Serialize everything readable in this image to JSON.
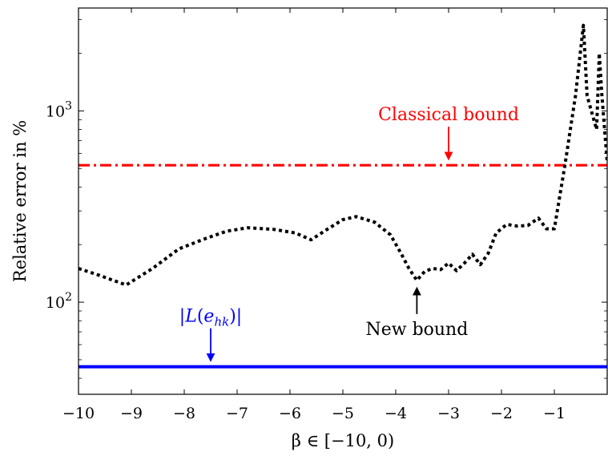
{
  "chart_data": {
    "type": "line",
    "xlabel": "β ∈ [−10, 0)",
    "ylabel": "Relative error in %",
    "xlim": [
      -10,
      0
    ],
    "ylim": [
      33,
      3450
    ],
    "y_scale": "log",
    "grid": false,
    "x_ticks": [
      {
        "value": -10,
        "label": "−10"
      },
      {
        "value": -9,
        "label": "−9"
      },
      {
        "value": -8,
        "label": "−8"
      },
      {
        "value": -7,
        "label": "−7"
      },
      {
        "value": -6,
        "label": "−6"
      },
      {
        "value": -5,
        "label": "−5"
      },
      {
        "value": -4,
        "label": "−4"
      },
      {
        "value": -3,
        "label": "−3"
      },
      {
        "value": -2,
        "label": "−2"
      },
      {
        "value": -1,
        "label": "−1"
      }
    ],
    "y_ticks": [
      {
        "value": 100,
        "base": "10",
        "exp": "2"
      },
      {
        "value": 1000,
        "base": "10",
        "exp": "3"
      }
    ],
    "y_minor_ticks": [
      40,
      50,
      60,
      70,
      80,
      90,
      200,
      300,
      400,
      500,
      600,
      700,
      800,
      900,
      2000,
      3000
    ],
    "series": [
      {
        "name": "Classical bound",
        "style": "dash-dot",
        "color": "#ff0000",
        "x": [
          -10,
          0
        ],
        "y": [
          520,
          520
        ]
      },
      {
        "name": "New bound",
        "style": "dotted",
        "color": "#000000",
        "x": [
          -10,
          -9.6,
          -9.1,
          -8.6,
          -8.1,
          -7.6,
          -7.2,
          -6.8,
          -6.3,
          -5.9,
          -5.6,
          -5.3,
          -5.0,
          -4.75,
          -4.4,
          -4.1,
          -3.9,
          -3.75,
          -3.6,
          -3.45,
          -3.3,
          -3.15,
          -3.0,
          -2.85,
          -2.7,
          -2.55,
          -2.4,
          -2.25,
          -2.1,
          -1.9,
          -1.7,
          -1.5,
          -1.3,
          -1.15,
          -1.0,
          -0.8,
          -0.6,
          -0.45,
          -0.38,
          -0.3,
          -0.2,
          -0.15,
          -0.1,
          0
        ],
        "y": [
          150,
          138,
          123,
          150,
          190,
          215,
          235,
          245,
          240,
          230,
          212,
          240,
          270,
          280,
          262,
          225,
          180,
          150,
          130,
          145,
          150,
          148,
          160,
          146,
          160,
          178,
          157,
          180,
          230,
          255,
          250,
          252,
          275,
          242,
          242,
          520,
          1200,
          2800,
          1200,
          1000,
          800,
          2000,
          1200,
          540
        ]
      },
      {
        "name": "|L(e_hk)|",
        "style": "solid",
        "color": "#0000ff",
        "x": [
          -10,
          0
        ],
        "y": [
          46,
          46
        ]
      }
    ],
    "annotations": [
      {
        "label": "Classical bound",
        "color": "#ff0000",
        "at_x": -3,
        "arrow": "down",
        "points_to_y": 520
      },
      {
        "label": "New bound",
        "color": "#000000",
        "at_x": -3.6,
        "arrow": "up",
        "points_to_y": 130
      },
      {
        "label": "|L(e_hk)|",
        "color": "#0000ff",
        "at_x": -7.5,
        "arrow": "down",
        "points_to_y": 46
      }
    ]
  }
}
